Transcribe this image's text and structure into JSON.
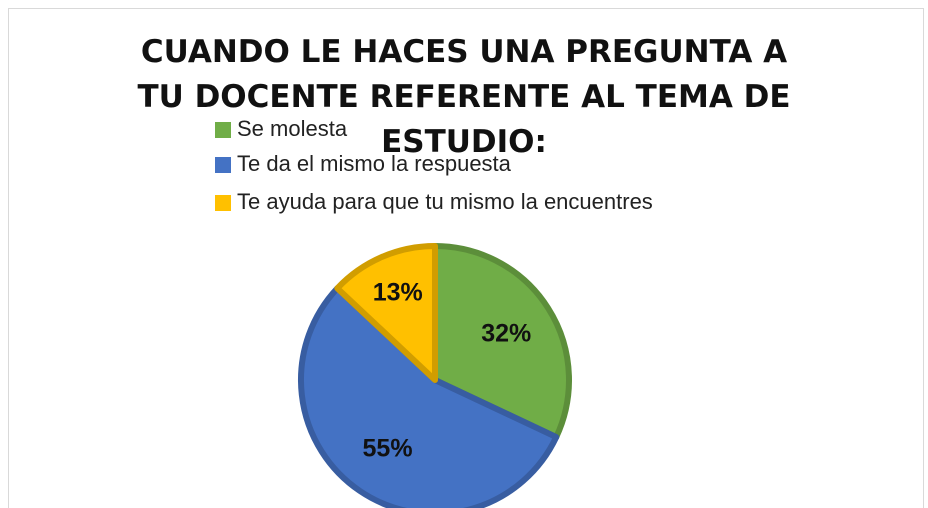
{
  "chart_data": {
    "type": "pie",
    "title": "CUANDO LE HACES UNA PREGUNTA A TU DOCENTE REFERENTE AL TEMA DE ESTUDIO:",
    "categories": [
      "Se molesta",
      "Te da el mismo la respuesta",
      "Te ayuda para que tu mismo la encuentres"
    ],
    "values": [
      32,
      55,
      13
    ],
    "value_labels": [
      "32%",
      "55%",
      "13%"
    ],
    "colors": [
      "#70ad47",
      "#4472c4",
      "#ffc000"
    ],
    "legend": "top-left"
  }
}
